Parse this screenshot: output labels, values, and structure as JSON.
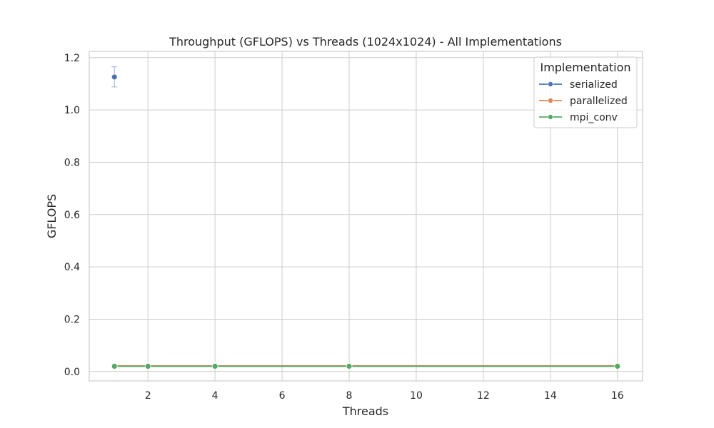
{
  "chart_data": {
    "type": "line",
    "title": "Throughput (GFLOPS) vs Threads (1024x1024) - All Implementations",
    "xlabel": "Threads",
    "ylabel": "GFLOPS",
    "xlim": [
      0.25,
      16.75
    ],
    "ylim": [
      -0.036,
      1.224
    ],
    "xticks": [
      2,
      4,
      6,
      8,
      10,
      12,
      14,
      16
    ],
    "yticks": [
      0.0,
      0.2,
      0.4,
      0.6,
      0.8,
      1.0,
      1.2
    ],
    "ytick_labels": [
      "0.0",
      "0.2",
      "0.4",
      "0.6",
      "0.8",
      "1.0",
      "1.2"
    ],
    "grid": true,
    "legend": {
      "title": "Implementation",
      "position": "top-right"
    },
    "series": [
      {
        "name": "serialized",
        "color": "#4c72b0",
        "x": [
          1
        ],
        "y": [
          1.126
        ],
        "error": [
          [
            1.088,
            1.165
          ]
        ]
      },
      {
        "name": "parallelized",
        "color": "#dd8452",
        "x": [
          1,
          2,
          4,
          8,
          16
        ],
        "y": [
          0.022,
          0.022,
          0.022,
          0.022,
          0.022
        ]
      },
      {
        "name": "mpi_conv",
        "color": "#55a868",
        "x": [
          1,
          2,
          4,
          8,
          16
        ],
        "y": [
          0.02,
          0.02,
          0.02,
          0.02,
          0.02
        ]
      }
    ]
  }
}
